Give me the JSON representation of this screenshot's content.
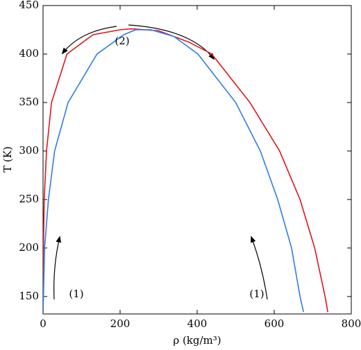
{
  "chart_data": {
    "type": "line",
    "x_label": "ρ (kg/m³)",
    "y_label": "T (K)",
    "xlim": [
      0,
      800
    ],
    "ylim": [
      132,
      450
    ],
    "xticks": [
      0,
      200,
      400,
      600,
      800
    ],
    "yticks": [
      150,
      200,
      250,
      300,
      350,
      400,
      450
    ],
    "series": [
      {
        "name": "red",
        "color": "#e0141e",
        "x": [
          0,
          1,
          3,
          9,
          22,
          62,
          130,
          200,
          230,
          300,
          380,
          438,
          537,
          614,
          667,
          705,
          732,
          739
        ],
        "values": [
          132,
          200,
          250,
          300,
          350,
          400,
          420,
          425,
          426,
          424,
          412,
          400,
          350,
          300,
          250,
          200,
          150,
          134
        ]
      },
      {
        "name": "blue",
        "color": "#2f7be6",
        "x": [
          0,
          4,
          14,
          30,
          65,
          140,
          210,
          240,
          280,
          340,
          402,
          500,
          564,
          609,
          645,
          667,
          676
        ],
        "values": [
          132,
          200,
          250,
          300,
          350,
          400,
          420,
          425,
          425,
          418,
          400,
          350,
          300,
          250,
          200,
          150,
          134
        ]
      }
    ],
    "annotations": [
      "(1)",
      "(1)",
      "(2)"
    ]
  }
}
